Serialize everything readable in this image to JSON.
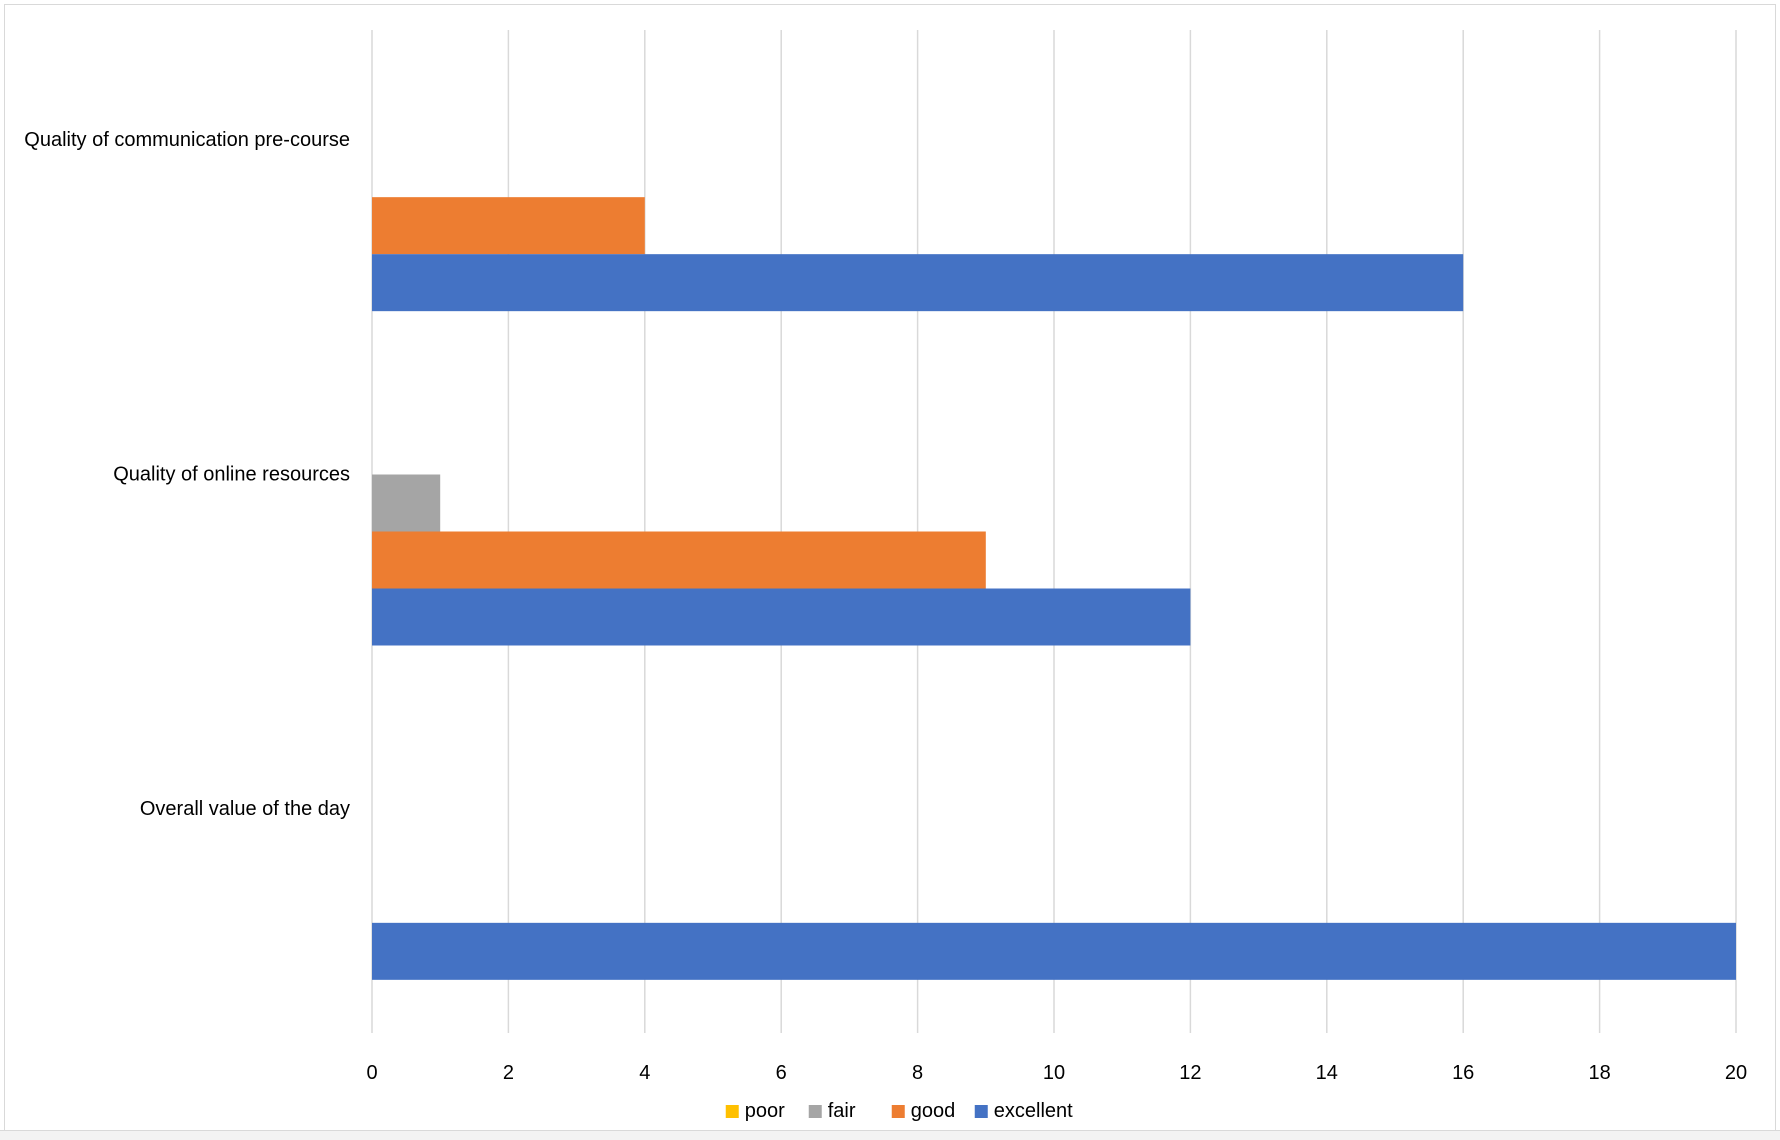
{
  "chart_data": {
    "type": "bar",
    "orientation": "horizontal",
    "title": "",
    "xlabel": "",
    "ylabel": "",
    "categories": [
      "Quality of communication pre-course",
      "Quality of online resources",
      "Overall value of the day"
    ],
    "series": [
      {
        "name": "poor",
        "color": "#FFC000",
        "values": [
          0,
          0,
          0
        ]
      },
      {
        "name": "fair",
        "color": "#A5A5A5",
        "values": [
          0,
          1,
          0
        ]
      },
      {
        "name": "good",
        "color": "#ED7D31",
        "values": [
          4,
          9,
          0
        ]
      },
      {
        "name": "excellent",
        "color": "#4472C4",
        "values": [
          16,
          12,
          20
        ]
      }
    ],
    "xlim": [
      0,
      20
    ],
    "xticks": [
      0,
      2,
      4,
      6,
      8,
      10,
      12,
      14,
      16,
      18,
      20
    ],
    "grid": true,
    "legend_position": "bottom"
  }
}
